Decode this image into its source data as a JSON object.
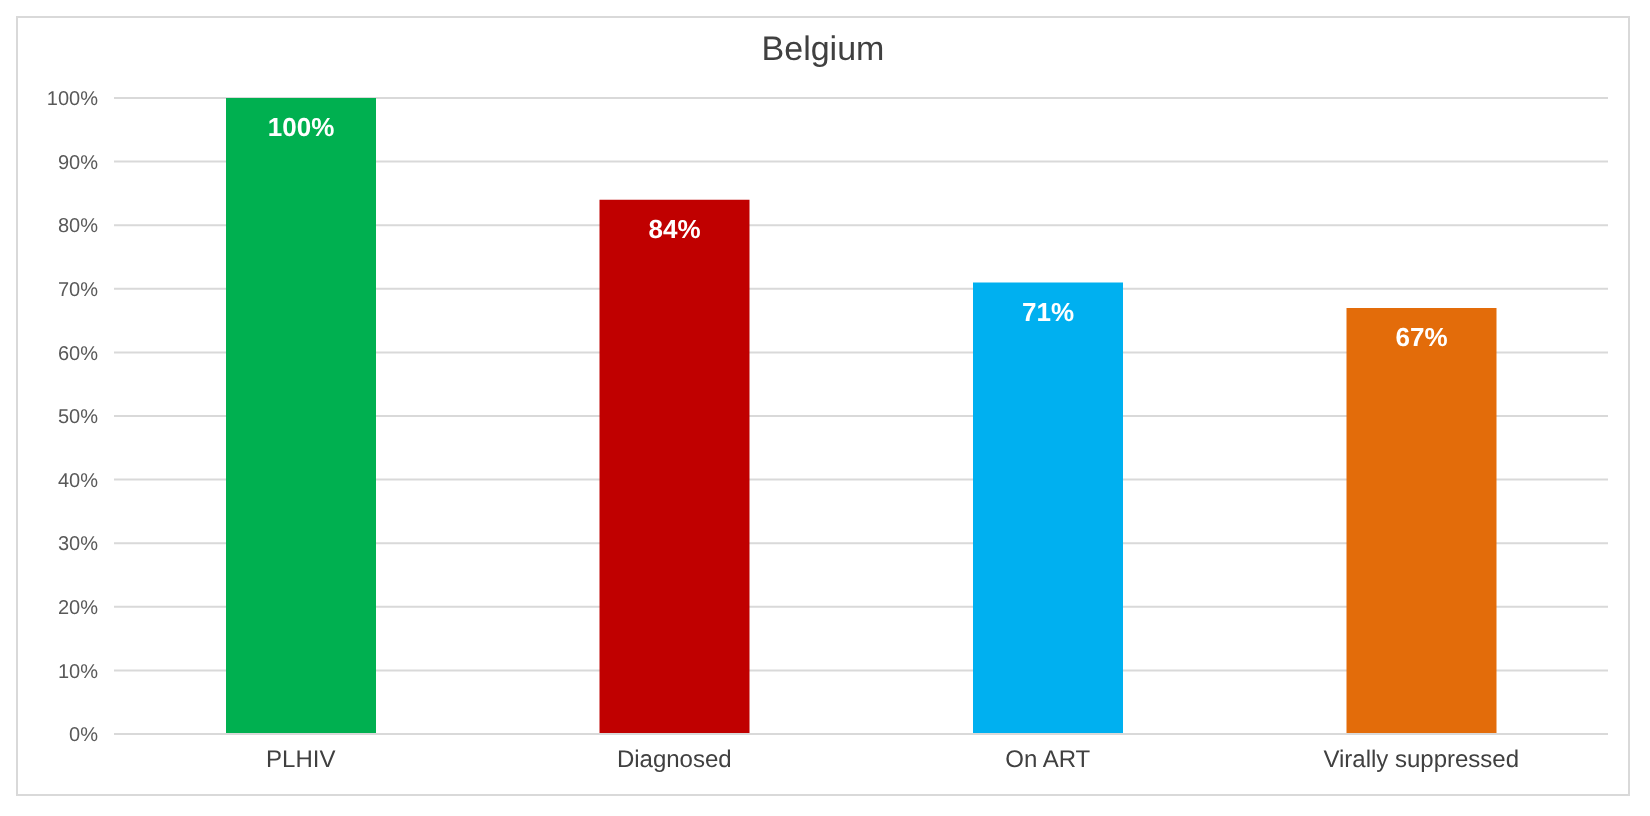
{
  "chart_data": {
    "type": "bar",
    "title": "Belgium",
    "categories": [
      "PLHIV",
      "Diagnosed",
      "On ART",
      "Virally suppressed"
    ],
    "values": [
      100,
      84,
      71,
      67
    ],
    "colors": [
      "#00b050",
      "#c00000",
      "#00b0f0",
      "#e36c0a"
    ],
    "value_labels": [
      "100%",
      "84%",
      "71%",
      "67%"
    ],
    "ylim": [
      0,
      100
    ],
    "yticks": [
      {
        "value": 0,
        "label": "0%"
      },
      {
        "value": 10,
        "label": "10%"
      },
      {
        "value": 20,
        "label": "20%"
      },
      {
        "value": 30,
        "label": "30%"
      },
      {
        "value": 40,
        "label": "40%"
      },
      {
        "value": 50,
        "label": "50%"
      },
      {
        "value": 60,
        "label": "60%"
      },
      {
        "value": 70,
        "label": "70%"
      },
      {
        "value": 80,
        "label": "80%"
      },
      {
        "value": 90,
        "label": "90%"
      },
      {
        "value": 100,
        "label": "100%"
      }
    ],
    "grid": "y"
  }
}
